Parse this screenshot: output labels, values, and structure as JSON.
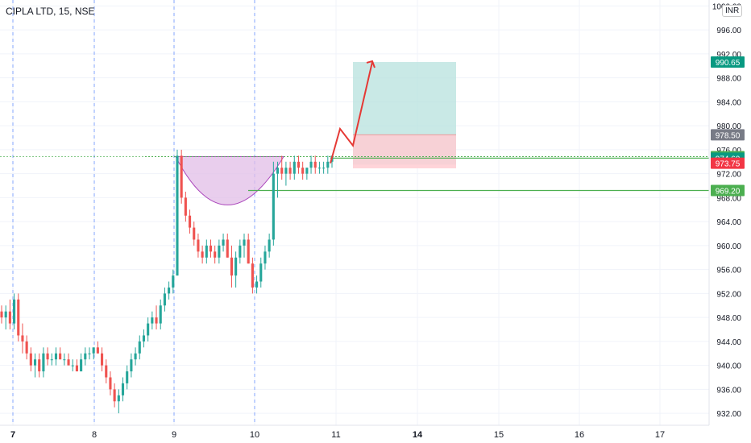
{
  "header": {
    "symbol": "CIPLA LTD, 15, NSE",
    "currency": "INR"
  },
  "colors": {
    "up": "#26a69a",
    "down": "#ef5350",
    "grid": "#f0f3fa",
    "session_line": "#2962ff",
    "pattern_fill": "#e1bee7",
    "pattern_stroke": "#ab47bc",
    "target_zone": "#b2dfdb",
    "stop_zone": "#ffcdd2",
    "level_line": "#4caf50",
    "arrow": "#e53935"
  },
  "chart_data": {
    "type": "candlestick",
    "symbol": "CIPLA LTD",
    "interval": "15",
    "exchange": "NSE",
    "currency": "INR",
    "ylim": [
      930,
      1001
    ],
    "y_ticks": [
      932,
      936,
      940,
      944,
      948,
      952,
      956,
      960,
      964,
      968,
      972,
      976,
      980,
      984,
      988,
      992,
      996,
      1000
    ],
    "y_tick_labels": [
      "932.00",
      "936.00",
      "940.00",
      "944.00",
      "948.00",
      "952.00",
      "956.00",
      "960.00",
      "964.00",
      "968.00",
      "972.00",
      "976.00",
      "980.00",
      "984.00",
      "988.00",
      "992.00",
      "996.00",
      "1000.00"
    ],
    "x_labels": [
      "7",
      "8",
      "9",
      "10",
      "11",
      "14",
      "15",
      "16",
      "17"
    ],
    "session_labels": [
      "7",
      "8",
      "9",
      "10"
    ],
    "ohlc": [
      [
        949,
        950,
        947,
        948
      ],
      [
        948,
        950,
        946,
        949
      ],
      [
        949,
        951,
        946,
        947
      ],
      [
        947,
        952,
        946,
        951
      ],
      [
        951,
        952,
        944,
        945
      ],
      [
        945,
        947,
        942,
        944
      ],
      [
        944,
        945,
        941,
        942
      ],
      [
        942,
        943,
        939,
        940
      ],
      [
        940,
        942,
        938,
        941
      ],
      [
        941,
        942,
        938,
        939
      ],
      [
        939,
        943,
        938,
        942
      ],
      [
        942,
        943,
        940,
        941
      ],
      [
        941,
        942,
        940,
        941
      ],
      [
        941,
        943,
        940,
        942
      ],
      [
        942,
        943,
        941,
        941
      ],
      [
        941,
        942,
        940,
        941
      ],
      [
        941,
        942,
        940,
        940
      ],
      [
        940,
        941,
        939,
        940
      ],
      [
        940,
        941,
        939,
        939
      ],
      [
        939,
        942,
        939,
        941
      ],
      [
        941,
        943,
        940,
        942
      ],
      [
        942,
        943,
        941,
        942
      ],
      [
        942,
        943,
        941,
        943
      ],
      [
        943,
        944,
        942,
        942
      ],
      [
        942,
        943,
        939,
        940
      ],
      [
        940,
        941,
        937,
        938
      ],
      [
        938,
        939,
        935,
        936
      ],
      [
        936,
        937,
        933,
        934
      ],
      [
        934,
        936,
        932,
        935
      ],
      [
        935,
        938,
        934,
        937
      ],
      [
        937,
        940,
        936,
        939
      ],
      [
        939,
        942,
        938,
        941
      ],
      [
        941,
        943,
        940,
        942
      ],
      [
        942,
        945,
        941,
        944
      ],
      [
        944,
        946,
        943,
        945
      ],
      [
        945,
        948,
        944,
        947
      ],
      [
        947,
        949,
        946,
        948
      ],
      [
        948,
        950,
        946,
        947
      ],
      [
        947,
        951,
        946,
        950
      ],
      [
        950,
        953,
        949,
        952
      ],
      [
        952,
        954,
        951,
        953
      ],
      [
        953,
        956,
        952,
        955
      ],
      [
        955,
        976,
        955,
        975
      ],
      [
        975,
        976,
        967,
        968
      ],
      [
        968,
        969,
        964,
        965
      ],
      [
        965,
        966,
        962,
        963
      ],
      [
        963,
        964,
        960,
        961
      ],
      [
        961,
        962,
        958,
        959
      ],
      [
        959,
        960,
        957,
        958
      ],
      [
        958,
        961,
        957,
        960
      ],
      [
        960,
        961,
        958,
        959
      ],
      [
        959,
        960,
        957,
        958
      ],
      [
        958,
        961,
        957,
        960
      ],
      [
        960,
        962,
        959,
        961
      ],
      [
        961,
        962,
        958,
        958
      ],
      [
        958,
        960,
        953,
        955
      ],
      [
        955,
        959,
        953,
        958
      ],
      [
        958,
        961,
        957,
        960
      ],
      [
        960,
        962,
        958,
        961
      ],
      [
        961,
        962,
        957,
        957
      ],
      [
        957,
        958,
        952,
        953
      ],
      [
        953,
        955,
        952,
        954
      ],
      [
        954,
        958,
        953,
        957
      ],
      [
        957,
        960,
        956,
        959
      ],
      [
        959,
        962,
        958,
        961
      ],
      [
        961,
        974,
        960,
        972
      ],
      [
        972,
        974,
        968,
        973
      ],
      [
        973,
        975,
        971,
        972
      ],
      [
        972,
        974,
        970,
        973
      ],
      [
        973,
        974,
        971,
        972
      ],
      [
        972,
        975,
        971,
        974
      ],
      [
        974,
        975,
        972,
        973
      ],
      [
        973,
        974,
        971,
        972
      ],
      [
        972,
        973,
        971,
        973
      ],
      [
        973,
        975,
        972,
        974
      ],
      [
        974,
        975,
        972,
        973
      ],
      [
        973,
        974,
        972,
        973
      ],
      [
        973,
        974,
        972,
        973
      ],
      [
        973,
        975,
        972,
        974
      ],
      [
        974,
        975,
        973,
        975
      ]
    ],
    "annotations": {
      "price_labels": [
        {
          "value": 990.65,
          "text": "990.65",
          "color": "#089981"
        },
        {
          "value": 978.5,
          "text": "978.50",
          "color": "#787b86"
        },
        {
          "value": 974.85,
          "text": "974.85",
          "color": "#4caf50"
        },
        {
          "value": 974.6,
          "text": "974.60",
          "color": "#089981"
        },
        {
          "value": 973.75,
          "text": "973.75",
          "color": "#f23645"
        },
        {
          "value": 969.2,
          "text": "969.20",
          "color": "#4caf50"
        }
      ],
      "horizontal_lines": [
        974.6,
        969.2
      ],
      "long_position": {
        "entry": 974.6,
        "target": 990.65,
        "stop": 972.9
      },
      "cup_pattern": {
        "top": 974.85,
        "bottom": 952
      }
    }
  }
}
